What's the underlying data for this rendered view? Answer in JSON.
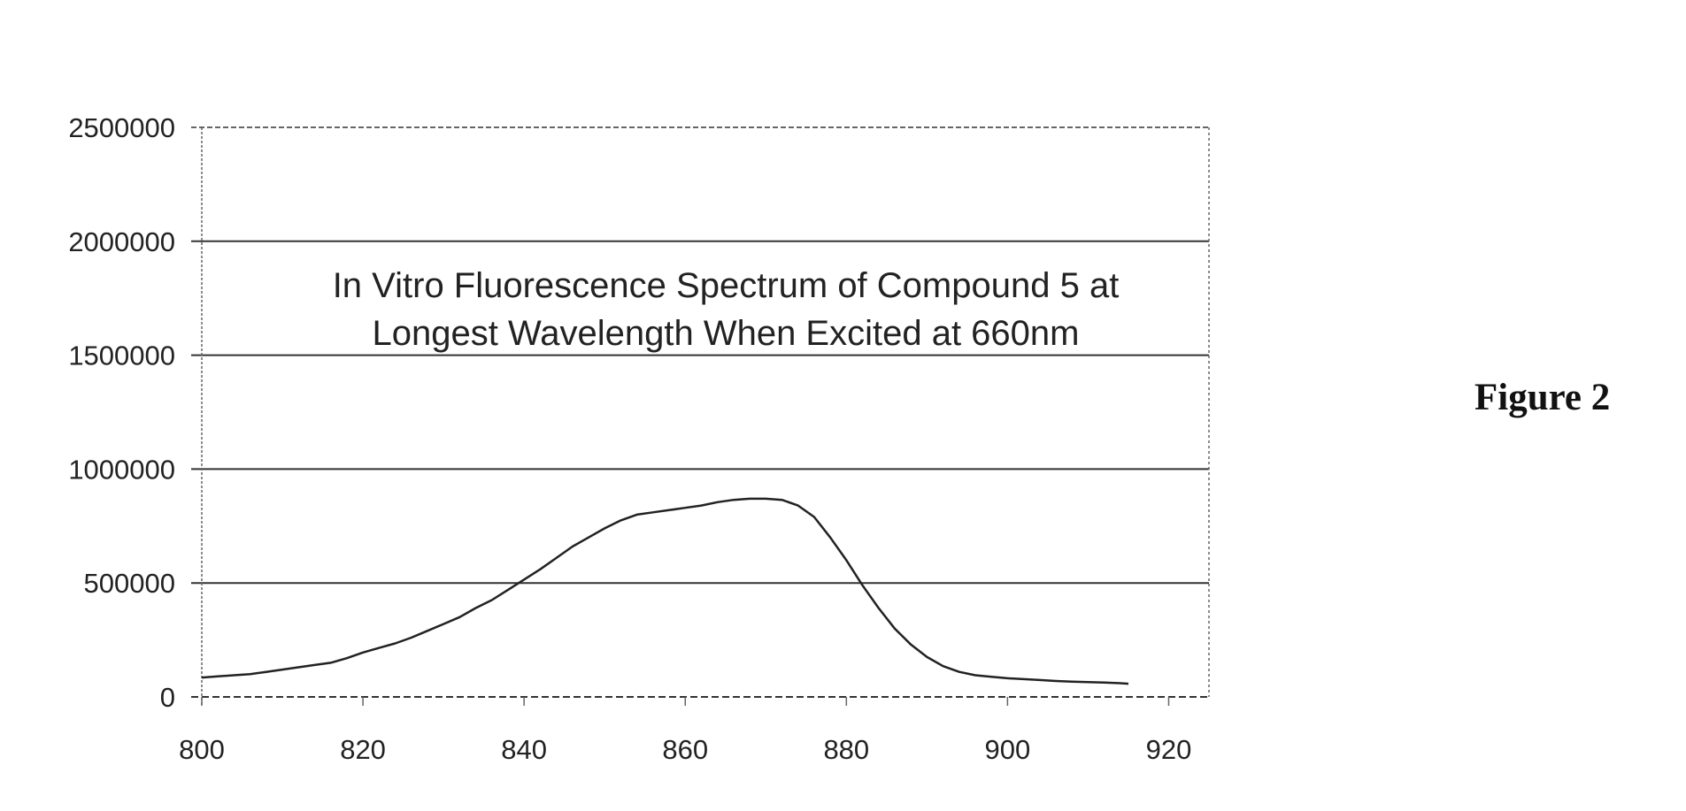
{
  "chart_data": {
    "type": "line",
    "title_lines": [
      "In Vitro Fluorescence Spectrum of Compound 5 at",
      "Longest Wavelength When Excited at 660nm"
    ],
    "xlabel": "",
    "ylabel": "",
    "xlim": [
      800,
      925
    ],
    "ylim": [
      0,
      2500000
    ],
    "x_ticks": [
      800,
      820,
      840,
      860,
      880,
      900,
      920
    ],
    "y_ticks": [
      0,
      500000,
      1000000,
      1500000,
      2000000,
      2500000
    ],
    "x_tick_labels": [
      "800",
      "820",
      "840",
      "860",
      "880",
      "900",
      "920"
    ],
    "y_tick_labels": [
      "0",
      "500000",
      "1000000",
      "1500000",
      "2000000",
      "2500000"
    ],
    "grid": true,
    "legend": "none",
    "series": [
      {
        "x": [
          800,
          802,
          804,
          806,
          808,
          810,
          812,
          814,
          816,
          818,
          820,
          822,
          824,
          826,
          828,
          830,
          832,
          834,
          836,
          838,
          840,
          842,
          844,
          846,
          848,
          850,
          852,
          854,
          856,
          858,
          860,
          862,
          864,
          866,
          868,
          870,
          872,
          874,
          876,
          878,
          880,
          882,
          884,
          886,
          888,
          890,
          892,
          894,
          896,
          898,
          900,
          902,
          904,
          906,
          908,
          910,
          912,
          914,
          915
        ],
        "y": [
          85000,
          90000,
          95000,
          100000,
          110000,
          120000,
          130000,
          140000,
          150000,
          170000,
          195000,
          215000,
          235000,
          260000,
          290000,
          320000,
          350000,
          390000,
          425000,
          470000,
          515000,
          560000,
          610000,
          660000,
          700000,
          740000,
          775000,
          800000,
          810000,
          820000,
          830000,
          840000,
          855000,
          865000,
          870000,
          870000,
          865000,
          840000,
          790000,
          700000,
          600000,
          490000,
          390000,
          300000,
          230000,
          175000,
          135000,
          110000,
          95000,
          88000,
          82000,
          78000,
          74000,
          70000,
          67000,
          65000,
          63000,
          60000,
          58000
        ]
      }
    ]
  },
  "figure_label": "Figure 2",
  "colors": {
    "line": "#222222",
    "grid": "#333333",
    "frame": "#666666"
  }
}
